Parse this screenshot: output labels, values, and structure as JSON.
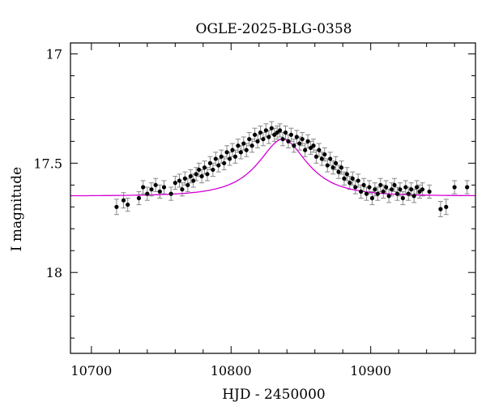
{
  "chart_data": {
    "type": "scatter",
    "title": "OGLE-2025-BLG-0358",
    "xlabel": "HJD - 2450000",
    "ylabel": "I magnitude",
    "xlim": [
      10685,
      10975
    ],
    "ylim": [
      18.37,
      16.95
    ],
    "y_inverted": true,
    "xticks": [
      10700,
      10800,
      10900
    ],
    "xtick_labels": [
      "10700",
      "10800",
      "10900"
    ],
    "yticks": [
      17,
      17.5,
      18
    ],
    "ytick_labels": [
      "17",
      "17.5",
      "18"
    ],
    "grid": false,
    "legend": "none",
    "colors": {
      "points": "#000000",
      "errorbars": "#888888",
      "model": "#d400d4"
    },
    "model": {
      "type": "microlensing-fit",
      "baseline_mag": 17.65,
      "peak_mag": 17.39,
      "t0": 10837,
      "tE": 32
    },
    "series": [
      {
        "x": [
          10718,
          10723,
          10726,
          10734,
          10737,
          10740,
          10743,
          10746,
          10749,
          10752,
          10757,
          10760,
          10763,
          10765,
          10767,
          10769,
          10771,
          10773,
          10775,
          10777,
          10779,
          10781,
          10783,
          10785,
          10787,
          10789,
          10791,
          10793,
          10795,
          10797,
          10799,
          10801,
          10803,
          10805,
          10807,
          10809,
          10811,
          10813,
          10815,
          10817,
          10819,
          10821,
          10823,
          10825,
          10827,
          10829,
          10831,
          10833,
          10835,
          10837,
          10839,
          10841,
          10843,
          10845,
          10847,
          10849,
          10851,
          10853,
          10855,
          10857,
          10859,
          10861,
          10863,
          10865,
          10867,
          10869,
          10871,
          10873,
          10875,
          10877,
          10879,
          10881,
          10883,
          10885,
          10887,
          10889,
          10891,
          10893,
          10895,
          10897,
          10899,
          10901,
          10903,
          10905,
          10907,
          10909,
          10911,
          10913,
          10915,
          10917,
          10919,
          10921,
          10923,
          10925,
          10927,
          10929,
          10931,
          10933,
          10935,
          10937,
          10942,
          10950,
          10954,
          10960,
          10969
        ],
        "y": [
          17.7,
          17.67,
          17.69,
          17.66,
          17.61,
          17.64,
          17.62,
          17.6,
          17.63,
          17.61,
          17.64,
          17.59,
          17.58,
          17.62,
          17.57,
          17.6,
          17.56,
          17.58,
          17.55,
          17.53,
          17.56,
          17.52,
          17.55,
          17.5,
          17.53,
          17.48,
          17.51,
          17.47,
          17.5,
          17.45,
          17.48,
          17.44,
          17.47,
          17.42,
          17.45,
          17.41,
          17.44,
          17.39,
          17.42,
          17.37,
          17.4,
          17.36,
          17.39,
          17.35,
          17.38,
          17.34,
          17.37,
          17.36,
          17.35,
          17.39,
          17.36,
          17.4,
          17.37,
          17.42,
          17.38,
          17.41,
          17.39,
          17.44,
          17.4,
          17.43,
          17.42,
          17.47,
          17.44,
          17.48,
          17.46,
          17.51,
          17.48,
          17.52,
          17.5,
          17.54,
          17.52,
          17.57,
          17.55,
          17.59,
          17.57,
          17.61,
          17.58,
          17.63,
          17.6,
          17.64,
          17.61,
          17.66,
          17.62,
          17.64,
          17.6,
          17.63,
          17.61,
          17.65,
          17.62,
          17.6,
          17.64,
          17.62,
          17.66,
          17.61,
          17.64,
          17.62,
          17.65,
          17.61,
          17.63,
          17.62,
          17.63,
          17.71,
          17.7,
          17.61,
          17.61
        ],
        "yerr": [
          0.035,
          0.035,
          0.03,
          0.03,
          0.03,
          0.03,
          0.03,
          0.03,
          0.03,
          0.03,
          0.03,
          0.03,
          0.03,
          0.03,
          0.03,
          0.03,
          0.03,
          0.03,
          0.03,
          0.03,
          0.03,
          0.03,
          0.03,
          0.03,
          0.03,
          0.03,
          0.03,
          0.03,
          0.03,
          0.03,
          0.03,
          0.03,
          0.03,
          0.03,
          0.03,
          0.03,
          0.03,
          0.03,
          0.03,
          0.03,
          0.03,
          0.03,
          0.03,
          0.03,
          0.03,
          0.03,
          0.03,
          0.03,
          0.03,
          0.03,
          0.03,
          0.03,
          0.03,
          0.03,
          0.03,
          0.03,
          0.03,
          0.03,
          0.03,
          0.03,
          0.03,
          0.03,
          0.03,
          0.03,
          0.03,
          0.03,
          0.03,
          0.03,
          0.03,
          0.03,
          0.03,
          0.03,
          0.03,
          0.03,
          0.03,
          0.03,
          0.03,
          0.03,
          0.03,
          0.03,
          0.03,
          0.03,
          0.03,
          0.03,
          0.03,
          0.03,
          0.03,
          0.03,
          0.03,
          0.03,
          0.03,
          0.03,
          0.03,
          0.03,
          0.03,
          0.03,
          0.03,
          0.03,
          0.03,
          0.03,
          0.03,
          0.035,
          0.035,
          0.03,
          0.03
        ]
      }
    ]
  }
}
